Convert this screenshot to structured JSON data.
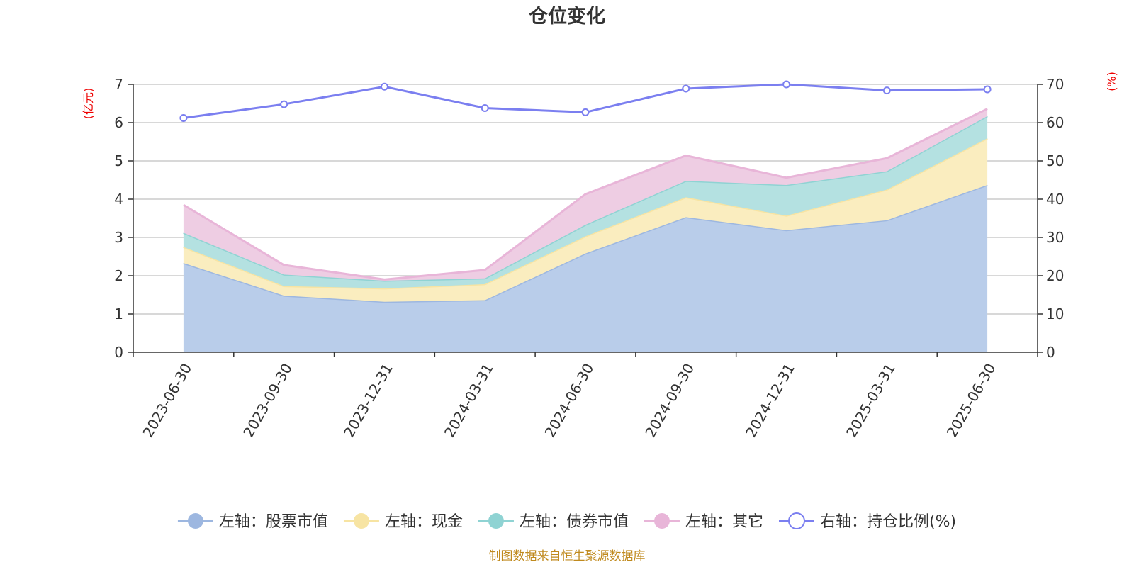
{
  "title": "仓位变化",
  "source": "制图数据来自恒生聚源数据库",
  "chart_data": {
    "type": "area",
    "title": "仓位变化",
    "categories": [
      "2023-06-30",
      "2023-09-30",
      "2023-12-31",
      "2024-03-31",
      "2024-06-30",
      "2024-09-30",
      "2024-12-31",
      "2025-03-31",
      "2025-06-30"
    ],
    "left_axis": {
      "unit": "(亿元)",
      "ylim": [
        0,
        7
      ],
      "ticks": [
        0,
        1,
        2,
        3,
        4,
        5,
        6,
        7
      ]
    },
    "right_axis": {
      "unit": "(%)",
      "ylim": [
        0,
        70
      ],
      "ticks": [
        0,
        10,
        20,
        30,
        40,
        50,
        60,
        70
      ]
    },
    "stacked": true,
    "grid": true,
    "legend_position": "bottom",
    "series": [
      {
        "name": "左轴：股票市值",
        "axis": "left",
        "type": "area",
        "color": "#9db7e0",
        "fill": "#b9cdea",
        "values": [
          2.33,
          1.48,
          1.32,
          1.36,
          2.58,
          3.53,
          3.19,
          3.45,
          4.37
        ]
      },
      {
        "name": "左轴：现金",
        "axis": "left",
        "type": "area",
        "color": "#f7e4a3",
        "fill": "#faedbf",
        "values": [
          0.42,
          0.25,
          0.35,
          0.42,
          0.45,
          0.52,
          0.38,
          0.8,
          1.22
        ]
      },
      {
        "name": "左轴：债券市值",
        "axis": "left",
        "type": "area",
        "color": "#8fd3d3",
        "fill": "#b4e1e1",
        "values": [
          0.37,
          0.3,
          0.2,
          0.15,
          0.3,
          0.43,
          0.8,
          0.48,
          0.58
        ]
      },
      {
        "name": "左轴：其它",
        "axis": "left",
        "type": "area",
        "color": "#e8b5d8",
        "fill": "#eecde3",
        "values": [
          0.73,
          0.25,
          0.03,
          0.22,
          0.8,
          0.66,
          0.19,
          0.34,
          0.19
        ]
      },
      {
        "name": "右轴：持仓比例(%)",
        "axis": "right",
        "type": "line",
        "color": "#7b7ff0",
        "values": [
          61.2,
          64.8,
          69.4,
          63.8,
          62.7,
          68.9,
          70.0,
          68.4,
          68.7
        ]
      }
    ]
  }
}
